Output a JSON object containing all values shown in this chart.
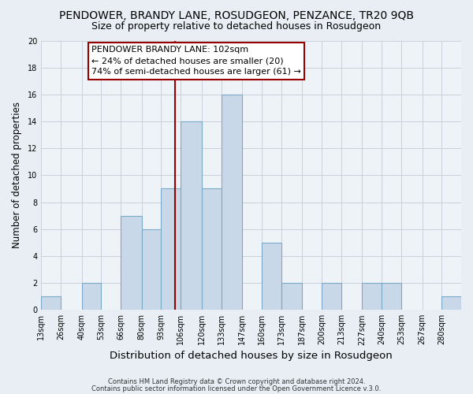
{
  "title": "PENDOWER, BRANDY LANE, ROSUDGEON, PENZANCE, TR20 9QB",
  "subtitle": "Size of property relative to detached houses in Rosudgeon",
  "xlabel": "Distribution of detached houses by size in Rosudgeon",
  "ylabel": "Number of detached properties",
  "footer_line1": "Contains HM Land Registry data © Crown copyright and database right 2024.",
  "footer_line2": "Contains public sector information licensed under the Open Government Licence v.3.0.",
  "bin_labels": [
    "13sqm",
    "26sqm",
    "40sqm",
    "53sqm",
    "66sqm",
    "80sqm",
    "93sqm",
    "106sqm",
    "120sqm",
    "133sqm",
    "147sqm",
    "160sqm",
    "173sqm",
    "187sqm",
    "200sqm",
    "213sqm",
    "227sqm",
    "240sqm",
    "253sqm",
    "267sqm",
    "280sqm"
  ],
  "bin_edges": [
    13,
    26,
    40,
    53,
    66,
    80,
    93,
    106,
    120,
    133,
    147,
    160,
    173,
    187,
    200,
    213,
    227,
    240,
    253,
    267,
    280,
    293
  ],
  "bar_heights": [
    1,
    0,
    2,
    0,
    7,
    6,
    9,
    14,
    9,
    16,
    0,
    5,
    2,
    0,
    2,
    0,
    2,
    2,
    0,
    0,
    1
  ],
  "bar_color": "#c8d8e8",
  "bar_edgecolor": "#7aaac8",
  "vline_x": 102,
  "vline_color": "#990000",
  "annotation_title": "PENDOWER BRANDY LANE: 102sqm",
  "annotation_line1": "← 24% of detached houses are smaller (20)",
  "annotation_line2": "74% of semi-detached houses are larger (61) →",
  "annotation_box_edgecolor": "#990000",
  "annotation_box_facecolor": "#ffffff",
  "ylim": [
    0,
    20
  ],
  "yticks": [
    0,
    2,
    4,
    6,
    8,
    10,
    12,
    14,
    16,
    18,
    20
  ],
  "background_color": "#e8eef4",
  "plot_background_color": "#eef3f8",
  "grid_color": "#c8d0da",
  "title_fontsize": 10,
  "subtitle_fontsize": 9,
  "xlabel_fontsize": 9.5,
  "ylabel_fontsize": 8.5,
  "tick_fontsize": 7,
  "annotation_title_fontsize": 8.5,
  "annotation_text_fontsize": 8,
  "footer_fontsize": 6
}
